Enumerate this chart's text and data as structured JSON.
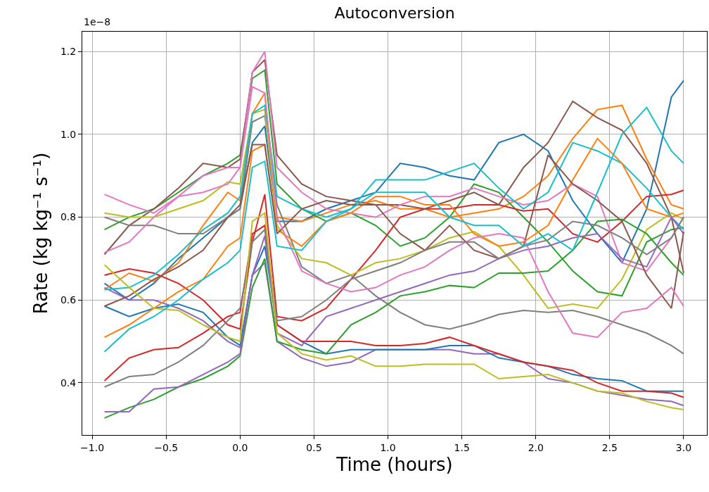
{
  "chart_data": {
    "type": "line",
    "title": "Autoconversion",
    "xlabel": "Time (hours)",
    "ylabel": "Rate (kg kg⁻¹ s⁻¹)",
    "annotations": [
      "1e−8"
    ],
    "x": [
      -0.917,
      -0.75,
      -0.583,
      -0.417,
      -0.25,
      -0.083,
      0,
      0.083,
      0.167,
      0.25,
      0.417,
      0.583,
      0.75,
      0.917,
      1.083,
      1.25,
      1.417,
      1.583,
      1.75,
      1.917,
      2.083,
      2.25,
      2.417,
      2.583,
      2.75,
      2.917,
      3.0
    ],
    "xlim": [
      -1.067,
      3.157
    ],
    "ylim": [
      0.274,
      1.248
    ],
    "xticks": [
      {
        "value": -1,
        "label": "−1.0"
      },
      {
        "value": -0.5,
        "label": "−0.5"
      },
      {
        "value": 0,
        "label": "0.0"
      },
      {
        "value": 0.5,
        "label": "0.5"
      },
      {
        "value": 1,
        "label": "1.0"
      },
      {
        "value": 1.5,
        "label": "1.5"
      },
      {
        "value": 2,
        "label": "2.0"
      },
      {
        "value": 2.5,
        "label": "2.5"
      },
      {
        "value": 3,
        "label": "3.0"
      }
    ],
    "yticks": [
      0.4,
      0.6,
      0.8,
      {
        "value": 1.0,
        "label": "1.0"
      },
      1.2
    ],
    "grid": true,
    "marker": "none",
    "line_style": "solid",
    "series": [
      {
        "color": "#1f77b4",
        "values": [
          0.64,
          0.6,
          0.64,
          0.7,
          0.75,
          0.8,
          0.82,
          0.98,
          1.02,
          0.79,
          0.79,
          0.82,
          0.84,
          0.86,
          0.93,
          0.92,
          0.9,
          0.89,
          0.98,
          1.0,
          0.96,
          0.84,
          0.76,
          0.69,
          0.82,
          1.09,
          1.13
        ]
      },
      {
        "color": "#ff7f0e",
        "values": [
          0.625,
          0.665,
          0.645,
          0.69,
          0.78,
          0.86,
          0.84,
          1.05,
          1.1,
          0.8,
          0.79,
          0.81,
          0.83,
          0.84,
          0.82,
          0.82,
          0.8,
          0.81,
          0.82,
          0.85,
          0.9,
          0.99,
          1.06,
          1.07,
          0.94,
          0.83,
          0.82
        ]
      },
      {
        "color": "#2ca02c",
        "values": [
          0.77,
          0.8,
          0.82,
          0.86,
          0.9,
          0.93,
          0.95,
          1.135,
          1.155,
          0.88,
          0.82,
          0.79,
          0.81,
          0.78,
          0.73,
          0.75,
          0.8,
          0.88,
          0.86,
          0.8,
          0.74,
          0.67,
          0.62,
          0.61,
          0.74,
          0.77,
          0.775
        ]
      },
      {
        "color": "#d62728",
        "values": [
          0.66,
          0.675,
          0.665,
          0.64,
          0.6,
          0.54,
          0.53,
          0.74,
          0.855,
          0.56,
          0.55,
          0.58,
          0.65,
          0.72,
          0.8,
          0.82,
          0.82,
          0.83,
          0.83,
          0.815,
          0.82,
          0.76,
          0.74,
          0.79,
          0.85,
          0.855,
          0.865
        ]
      },
      {
        "color": "#9467bd",
        "values": [
          0.63,
          0.6,
          0.6,
          0.58,
          0.55,
          0.5,
          0.485,
          0.66,
          0.69,
          0.5,
          0.46,
          0.44,
          0.45,
          0.48,
          0.48,
          0.48,
          0.48,
          0.47,
          0.47,
          0.45,
          0.41,
          0.4,
          0.38,
          0.37,
          0.36,
          0.355,
          0.345
        ]
      },
      {
        "color": "#8c564b",
        "values": [
          0.71,
          0.78,
          0.82,
          0.87,
          0.93,
          0.92,
          0.94,
          1.15,
          1.18,
          0.95,
          0.88,
          0.85,
          0.84,
          0.83,
          0.83,
          0.82,
          0.84,
          0.86,
          0.83,
          0.92,
          0.98,
          1.08,
          1.04,
          1.01,
          0.93,
          0.8,
          0.665
        ]
      },
      {
        "color": "#e377c2",
        "values": [
          0.855,
          0.83,
          0.81,
          0.85,
          0.9,
          0.92,
          0.92,
          1.15,
          1.2,
          0.92,
          0.86,
          0.82,
          0.81,
          0.8,
          0.83,
          0.85,
          0.85,
          0.87,
          0.85,
          0.83,
          0.84,
          0.88,
          0.85,
          0.69,
          0.67,
          0.75,
          0.8
        ]
      },
      {
        "color": "#7f7f7f",
        "values": [
          0.8,
          0.78,
          0.78,
          0.76,
          0.76,
          0.8,
          0.82,
          1.03,
          1.045,
          0.83,
          0.68,
          0.64,
          0.66,
          0.61,
          0.57,
          0.54,
          0.53,
          0.545,
          0.565,
          0.575,
          0.57,
          0.575,
          0.56,
          0.54,
          0.52,
          0.49,
          0.47
        ]
      },
      {
        "color": "#bcbd22",
        "values": [
          0.81,
          0.8,
          0.8,
          0.82,
          0.84,
          0.885,
          0.88,
          1.05,
          1.06,
          0.78,
          0.7,
          0.69,
          0.66,
          0.69,
          0.7,
          0.72,
          0.75,
          0.765,
          0.73,
          0.66,
          0.58,
          0.59,
          0.58,
          0.65,
          0.77,
          0.81,
          0.795
        ]
      },
      {
        "color": "#17becf",
        "values": [
          0.625,
          0.63,
          0.66,
          0.71,
          0.77,
          0.81,
          0.85,
          1.05,
          1.07,
          0.85,
          0.82,
          0.8,
          0.82,
          0.89,
          0.89,
          0.89,
          0.91,
          0.93,
          0.87,
          0.82,
          0.86,
          0.98,
          0.96,
          0.93,
          0.87,
          0.8,
          0.77
        ]
      },
      {
        "color": "#1f77b4",
        "values": [
          0.585,
          0.56,
          0.58,
          0.59,
          0.57,
          0.51,
          0.49,
          0.66,
          0.73,
          0.54,
          0.5,
          0.47,
          0.48,
          0.48,
          0.48,
          0.48,
          0.49,
          0.49,
          0.46,
          0.45,
          0.44,
          0.42,
          0.41,
          0.405,
          0.38,
          0.38,
          0.38
        ]
      },
      {
        "color": "#ff7f0e",
        "values": [
          0.51,
          0.54,
          0.58,
          0.62,
          0.65,
          0.73,
          0.75,
          0.96,
          0.975,
          0.77,
          0.73,
          0.79,
          0.81,
          0.85,
          0.85,
          0.83,
          0.83,
          0.76,
          0.73,
          0.74,
          0.78,
          0.89,
          0.99,
          0.93,
          0.82,
          0.8,
          0.81
        ]
      },
      {
        "color": "#2ca02c",
        "values": [
          0.315,
          0.34,
          0.36,
          0.39,
          0.41,
          0.44,
          0.465,
          0.63,
          0.7,
          0.5,
          0.48,
          0.47,
          0.54,
          0.57,
          0.61,
          0.62,
          0.635,
          0.63,
          0.665,
          0.665,
          0.67,
          0.72,
          0.79,
          0.795,
          0.76,
          0.69,
          0.66
        ]
      },
      {
        "color": "#d62728",
        "values": [
          0.405,
          0.46,
          0.48,
          0.485,
          0.52,
          0.56,
          0.57,
          0.76,
          0.78,
          0.54,
          0.5,
          0.5,
          0.5,
          0.49,
          0.49,
          0.495,
          0.51,
          0.49,
          0.47,
          0.45,
          0.44,
          0.43,
          0.4,
          0.38,
          0.38,
          0.375,
          0.365
        ]
      },
      {
        "color": "#9467bd",
        "values": [
          0.33,
          0.33,
          0.385,
          0.39,
          0.42,
          0.45,
          0.47,
          0.66,
          0.755,
          0.52,
          0.49,
          0.56,
          0.58,
          0.6,
          0.62,
          0.64,
          0.66,
          0.67,
          0.7,
          0.72,
          0.73,
          0.75,
          0.76,
          0.7,
          0.68,
          0.8,
          0.76
        ]
      },
      {
        "color": "#8c564b",
        "values": [
          0.585,
          0.61,
          0.65,
          0.68,
          0.72,
          0.8,
          0.83,
          0.975,
          0.975,
          0.76,
          0.82,
          0.84,
          0.83,
          0.83,
          0.76,
          0.72,
          0.78,
          0.72,
          0.7,
          0.73,
          0.95,
          0.88,
          0.84,
          0.79,
          0.66,
          0.58,
          0.765
        ]
      },
      {
        "color": "#e377c2",
        "values": [
          0.715,
          0.74,
          0.8,
          0.85,
          0.86,
          0.88,
          0.92,
          1.115,
          1.1,
          0.8,
          0.67,
          0.64,
          0.62,
          0.63,
          0.66,
          0.68,
          0.72,
          0.75,
          0.76,
          0.75,
          0.62,
          0.52,
          0.51,
          0.57,
          0.58,
          0.63,
          0.585
        ]
      },
      {
        "color": "#7f7f7f",
        "values": [
          0.39,
          0.415,
          0.42,
          0.45,
          0.49,
          0.55,
          0.58,
          0.74,
          0.77,
          0.55,
          0.56,
          0.6,
          0.65,
          0.67,
          0.69,
          0.72,
          0.74,
          0.74,
          0.7,
          0.73,
          0.745,
          0.79,
          0.78,
          0.75,
          0.71,
          0.75,
          0.8
        ]
      },
      {
        "color": "#bcbd22",
        "values": [
          0.685,
          0.63,
          0.58,
          0.575,
          0.54,
          0.51,
          0.5,
          0.79,
          0.81,
          0.52,
          0.47,
          0.455,
          0.465,
          0.44,
          0.44,
          0.445,
          0.445,
          0.445,
          0.41,
          0.415,
          0.42,
          0.4,
          0.38,
          0.375,
          0.355,
          0.34,
          0.335
        ]
      },
      {
        "color": "#17becf",
        "values": [
          0.475,
          0.53,
          0.56,
          0.6,
          0.65,
          0.69,
          0.72,
          0.92,
          0.935,
          0.73,
          0.72,
          0.79,
          0.82,
          0.86,
          0.86,
          0.86,
          0.8,
          0.78,
          0.78,
          0.73,
          0.76,
          0.72,
          0.86,
          1.0,
          1.065,
          0.96,
          0.93
        ]
      }
    ]
  }
}
